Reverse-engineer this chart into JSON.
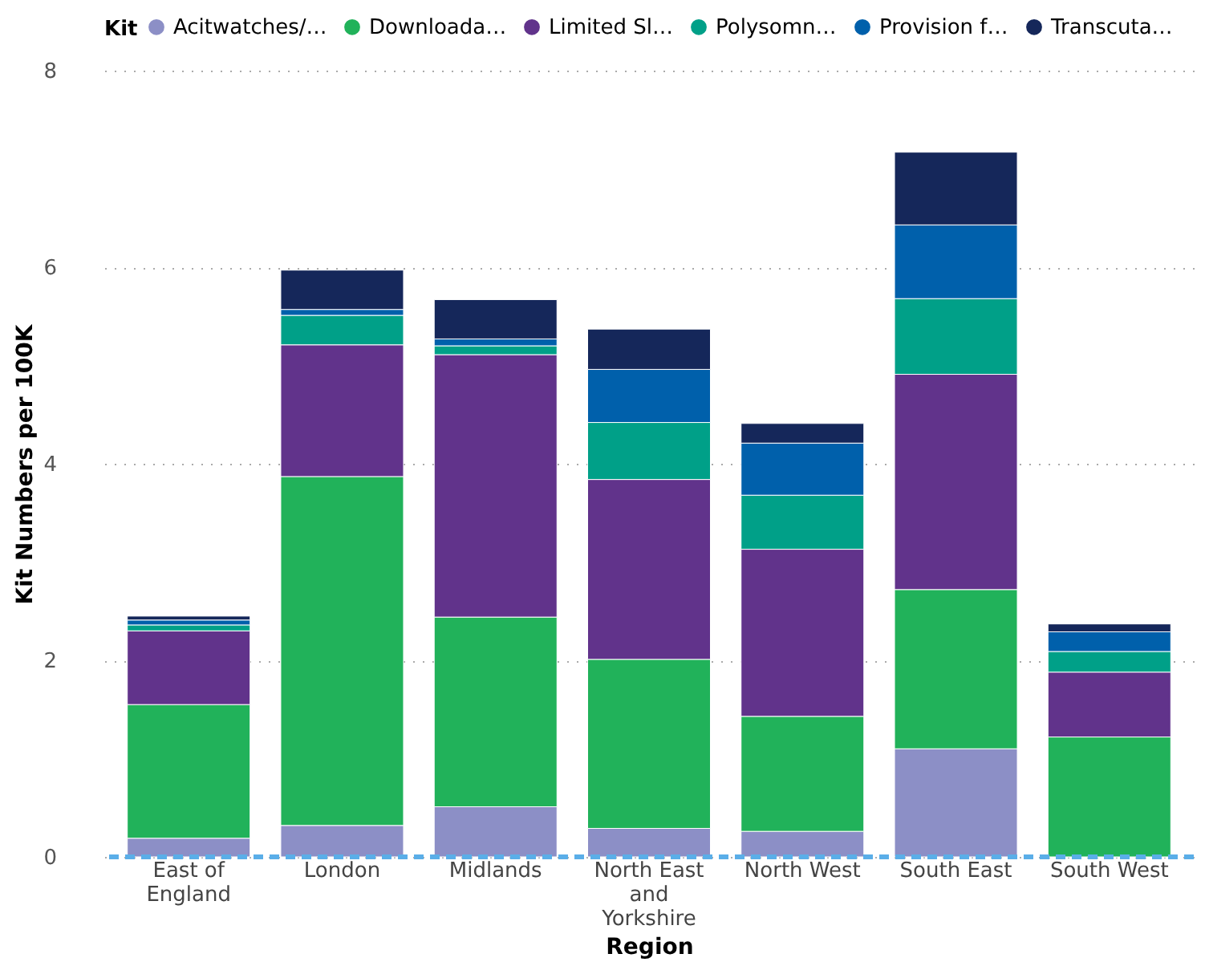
{
  "chart_data": {
    "type": "bar",
    "stacked": true,
    "xlabel": "Region",
    "ylabel": "Kit Numbers per 100K",
    "legend_title": "Kit",
    "legend": "top left",
    "grid": "y",
    "categories": [
      "East of England",
      "London",
      "Midlands",
      "North East and Yorkshire",
      "North West",
      "South East",
      "South West"
    ],
    "ylim": [
      0,
      8
    ],
    "yticks": [
      0,
      2,
      4,
      6,
      8
    ],
    "series": [
      {
        "name": "Acitwatches/…",
        "color": "#8c8fc6",
        "values": [
          0.19,
          0.32,
          0.51,
          0.29,
          0.26,
          1.1,
          0
        ]
      },
      {
        "name": "Downloada…",
        "color": "#21b25a",
        "values": [
          1.36,
          3.55,
          1.93,
          1.72,
          1.17,
          1.62,
          1.22
        ]
      },
      {
        "name": "Limited Sl…",
        "color": "#61338b",
        "values": [
          0.75,
          1.34,
          2.67,
          1.83,
          1.7,
          2.19,
          0.66
        ]
      },
      {
        "name": "Polysomn…",
        "color": "#00a088",
        "values": [
          0.06,
          0.3,
          0.09,
          0.58,
          0.55,
          0.77,
          0.21
        ]
      },
      {
        "name": "Provision f…",
        "color": "#0060ab",
        "values": [
          0.05,
          0.06,
          0.07,
          0.54,
          0.53,
          0.75,
          0.2
        ]
      },
      {
        "name": "Transcuta…",
        "color": "#15275a",
        "values": [
          0.04,
          0.4,
          0.4,
          0.41,
          0.2,
          0.74,
          0.08
        ]
      }
    ],
    "ref_lines": [
      {
        "axis": "y",
        "value": 0,
        "color": "#5aaee8",
        "line_style": "dashed"
      }
    ]
  }
}
